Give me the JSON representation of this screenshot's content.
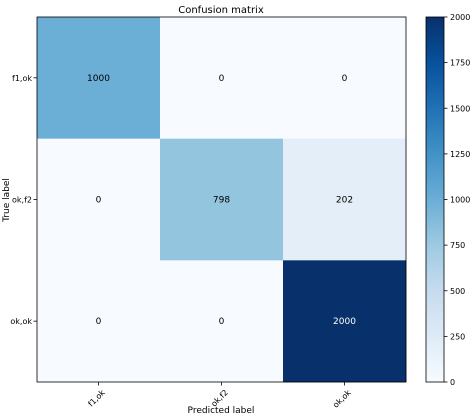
{
  "chart_data": {
    "type": "heatmap",
    "title": "Confusion matrix",
    "xlabel": "Predicted label",
    "ylabel": "True label",
    "x_categories": [
      "f1,ok",
      "ok,f2",
      "ok,ok"
    ],
    "y_categories": [
      "f1,ok",
      "ok,f2",
      "ok,ok"
    ],
    "values": [
      [
        1000,
        0,
        0
      ],
      [
        0,
        798,
        202
      ],
      [
        0,
        0,
        2000
      ]
    ],
    "colormap": "Blues",
    "color_range": [
      0,
      2000
    ],
    "colorbar_ticks": [
      "0",
      "250",
      "500",
      "750",
      "1000",
      "1250",
      "1500",
      "1750",
      "2000"
    ],
    "grid": false
  }
}
